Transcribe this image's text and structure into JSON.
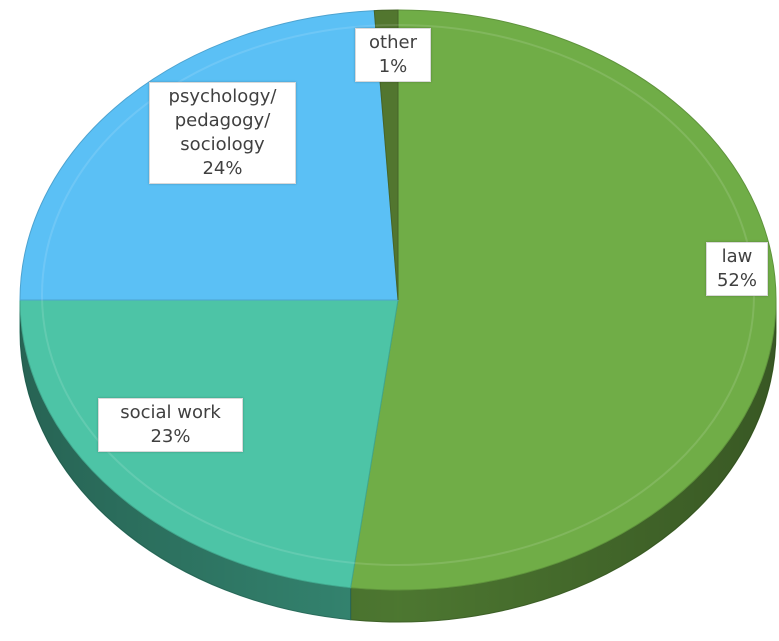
{
  "chart_data": {
    "type": "pie",
    "title": "",
    "three_d": true,
    "start_angle_deg": 0,
    "direction": "clockwise",
    "slices": [
      {
        "label_lines": [
          "law"
        ],
        "percent_label": "52%",
        "value": 52,
        "color": "#70ad47"
      },
      {
        "label_lines": [
          "social work"
        ],
        "percent_label": "23%",
        "value": 23,
        "color": "#4dc4a6"
      },
      {
        "label_lines": [
          "psychology/",
          "pedagogy/",
          "sociology"
        ],
        "percent_label": "24%",
        "value": 24,
        "color": "#5bc0f5"
      },
      {
        "label_lines": [
          "other"
        ],
        "percent_label": "1%",
        "value": 1,
        "color": "#52762f"
      }
    ],
    "legend": "none",
    "data_labels": "boxed, on slices"
  }
}
